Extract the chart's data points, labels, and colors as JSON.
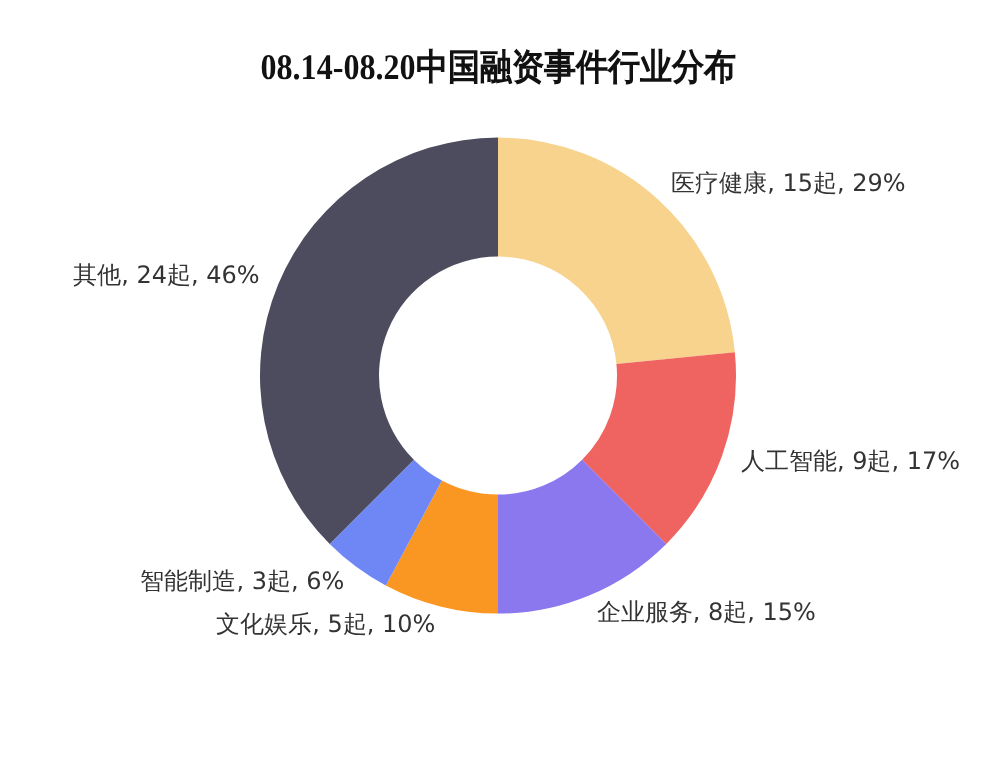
{
  "chart_data": {
    "type": "donut",
    "title": "08.14-08.20中国融资事件行业分布",
    "categories": [
      "医疗健康",
      "人工智能",
      "企业服务",
      "文化娱乐",
      "智能制造",
      "其他"
    ],
    "values": [
      15,
      9,
      8,
      5,
      3,
      24
    ],
    "value_labels": [
      "15起, 29%",
      "9起, 17%",
      "8起, 15%",
      "5起, 10%",
      "3起, 6%",
      "24起, 46%"
    ],
    "colors": [
      "#f8d38e",
      "#ef6461",
      "#8b78ee",
      "#fa9722",
      "#6f86f5",
      "#4d4c5e"
    ],
    "legend": false
  }
}
